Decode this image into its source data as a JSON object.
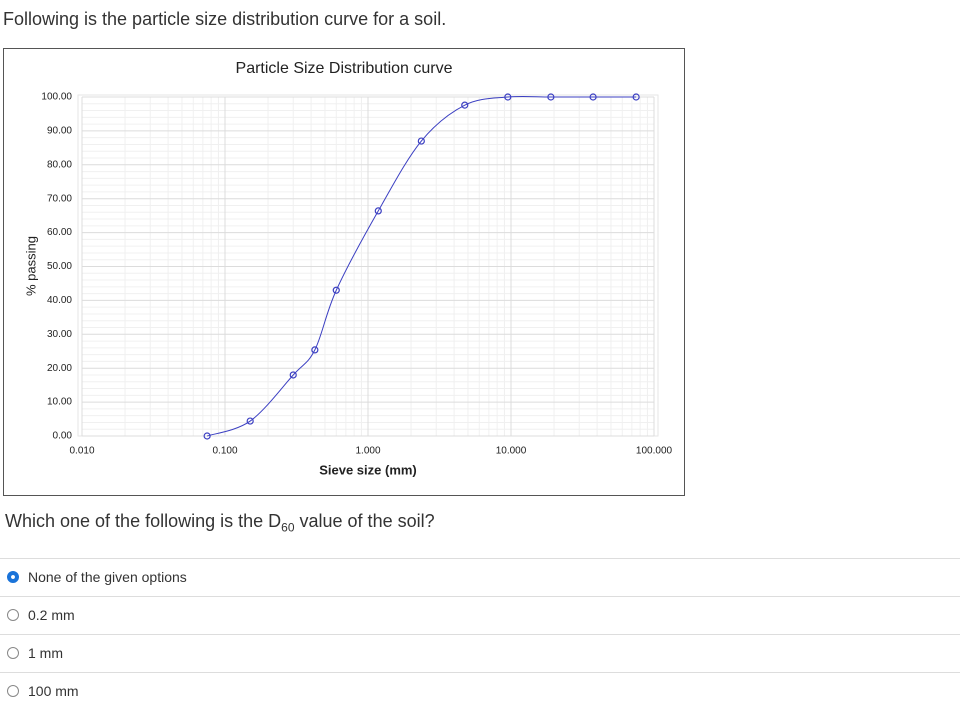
{
  "intro": "Following is the particle size distribution curve for a soil.",
  "chart_data": {
    "type": "line",
    "title": "Particle Size Distribution curve",
    "x_label": "Sieve size (mm)",
    "y_label": "% passing",
    "x": [
      0.075,
      0.15,
      0.3,
      0.425,
      0.6,
      1.18,
      2.36,
      4.75,
      9.5,
      19,
      37.5,
      75
    ],
    "series": [
      {
        "color": "#3b3fc2",
        "values": [
          0,
          4.4,
          18,
          25.4,
          43,
          66.4,
          87,
          97.6,
          100,
          100,
          100,
          100
        ]
      }
    ],
    "x_log": true,
    "grid": true,
    "xlim": [
      0.01,
      100
    ],
    "xticks": [
      {
        "value": 0.01,
        "label": "0.010"
      },
      {
        "value": 0.1,
        "label": "0.100"
      },
      {
        "value": 1,
        "label": "1.000"
      },
      {
        "value": 10,
        "label": "10.000"
      },
      {
        "value": 100,
        "label": "100.000"
      }
    ],
    "ylim": [
      0,
      100
    ],
    "yticks": [
      {
        "value": 0,
        "label": "0.00"
      },
      {
        "value": 10,
        "label": "10.00"
      },
      {
        "value": 20,
        "label": "20.00"
      },
      {
        "value": 30,
        "label": "30.00"
      },
      {
        "value": 40,
        "label": "40.00"
      },
      {
        "value": 50,
        "label": "50.00"
      },
      {
        "value": 60,
        "label": "60.00"
      },
      {
        "value": 70,
        "label": "70.00"
      },
      {
        "value": 80,
        "label": "80.00"
      },
      {
        "value": 90,
        "label": "90.00"
      },
      {
        "value": 100,
        "label": "100.00"
      }
    ]
  },
  "question": {
    "before": "Which one of the following is the D",
    "sub": "60",
    "after": " value of the soil?"
  },
  "options": [
    "None of the given options",
    "0.2 mm",
    "1 mm",
    "100 mm"
  ],
  "selected": 0
}
